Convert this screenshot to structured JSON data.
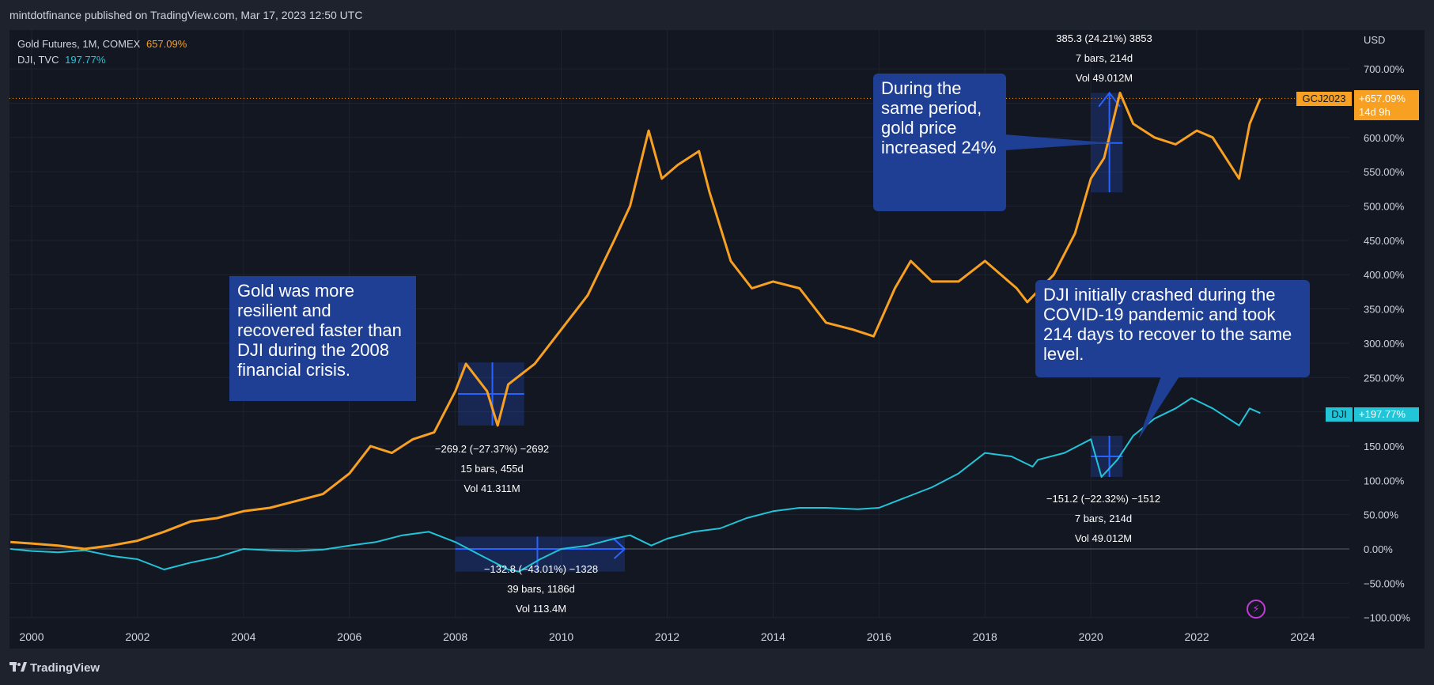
{
  "header": {
    "publisher": "mintdotfinance published on TradingView.com, Mar 17, 2023 12:50 UTC"
  },
  "footer": {
    "brand": "TradingView"
  },
  "legend": [
    {
      "name": "Gold Futures, 1M, COMEX",
      "value": "657.09%",
      "color": "#f7a021"
    },
    {
      "name": "DJI, TVC",
      "value": "197.77%",
      "color": "#22c4d8"
    }
  ],
  "price_axis": {
    "currency": "USD"
  },
  "badges": {
    "gold": {
      "symbol": "GCJ2023",
      "value": "+657.09%",
      "countdown": "14d 9h"
    },
    "dji": {
      "symbol": "DJI",
      "value": "+197.77%"
    }
  },
  "annotations": [
    {
      "id": "note-gold-2008",
      "text": "Gold was more resilient and recovered faster than DJI during the 2008 financial crisis."
    },
    {
      "id": "note-gold-2020",
      "text": "During the same period, gold price increased 24%"
    },
    {
      "id": "note-dji-covid",
      "text": "DJI initially crashed during the COVID-19 pandemic and took 214 days to recover to the same level."
    }
  ],
  "measurements": [
    {
      "id": "meas-gold-2008",
      "line1": "−269.2 (−27.37%) −2692",
      "line2": "15 bars, 455d",
      "line3": "Vol 41.311M"
    },
    {
      "id": "meas-dji-2008",
      "line1": "−132.8 (−43.01%) −1328",
      "line2": "39 bars, 1186d",
      "line3": "Vol 113.4M"
    },
    {
      "id": "meas-gold-2020",
      "line1": "385.3 (24.21%) 3853",
      "line2": "7 bars, 214d",
      "line3": "Vol 49.012M"
    },
    {
      "id": "meas-dji-2020",
      "line1": "−151.2 (−22.32%) −1512",
      "line2": "7 bars, 214d",
      "line3": "Vol 49.012M"
    }
  ],
  "chart_data": {
    "type": "line",
    "ylabel": "USD",
    "y_unit": "%",
    "ylim": [
      -100,
      750
    ],
    "yticks": [
      -100,
      -50,
      0,
      50,
      100,
      150,
      200,
      250,
      300,
      350,
      400,
      450,
      500,
      550,
      600,
      650,
      700
    ],
    "xlim": [
      1999.6,
      2025.2
    ],
    "xticks": [
      2000,
      2002,
      2004,
      2006,
      2008,
      2010,
      2012,
      2014,
      2016,
      2018,
      2020,
      2022,
      2024
    ],
    "grid": true,
    "series": [
      {
        "name": "Gold Futures, 1M, COMEX",
        "color": "#f7a021",
        "x": [
          1999.6,
          2000.0,
          2000.5,
          2001.0,
          2001.5,
          2002.0,
          2002.5,
          2003.0,
          2003.5,
          2004.0,
          2004.5,
          2005.0,
          2005.5,
          2006.0,
          2006.4,
          2006.8,
          2007.2,
          2007.6,
          2008.0,
          2008.2,
          2008.6,
          2008.8,
          2009.0,
          2009.5,
          2010.0,
          2010.5,
          2011.0,
          2011.3,
          2011.65,
          2011.9,
          2012.2,
          2012.6,
          2012.8,
          2013.2,
          2013.6,
          2014.0,
          2014.5,
          2015.0,
          2015.5,
          2015.9,
          2016.3,
          2016.6,
          2017.0,
          2017.5,
          2018.0,
          2018.6,
          2018.8,
          2019.3,
          2019.7,
          2020.0,
          2020.25,
          2020.55,
          2020.8,
          2021.2,
          2021.6,
          2022.0,
          2022.3,
          2022.8,
          2023.0,
          2023.2
        ],
        "y": [
          10,
          8,
          5,
          0,
          5,
          12,
          25,
          40,
          45,
          55,
          60,
          70,
          80,
          110,
          150,
          140,
          160,
          170,
          230,
          270,
          230,
          180,
          240,
          270,
          320,
          370,
          450,
          500,
          610,
          540,
          560,
          580,
          520,
          420,
          380,
          390,
          380,
          330,
          320,
          310,
          380,
          420,
          390,
          390,
          420,
          380,
          360,
          400,
          460,
          540,
          570,
          665,
          620,
          600,
          590,
          610,
          600,
          540,
          620,
          657
        ]
      },
      {
        "name": "DJI, TVC",
        "color": "#22c4d8",
        "x": [
          1999.6,
          2000.0,
          2000.5,
          2001.0,
          2001.5,
          2002.0,
          2002.5,
          2003.0,
          2003.5,
          2004.0,
          2004.5,
          2005.0,
          2005.5,
          2006.0,
          2006.5,
          2007.0,
          2007.5,
          2008.0,
          2008.5,
          2009.0,
          2009.2,
          2009.6,
          2010.0,
          2010.5,
          2011.0,
          2011.3,
          2011.7,
          2012.0,
          2012.5,
          2013.0,
          2013.5,
          2014.0,
          2014.5,
          2015.0,
          2015.6,
          2016.0,
          2016.5,
          2017.0,
          2017.5,
          2018.0,
          2018.5,
          2018.9,
          2019.0,
          2019.5,
          2020.0,
          2020.2,
          2020.5,
          2020.8,
          2021.2,
          2021.6,
          2021.9,
          2022.3,
          2022.8,
          2023.0,
          2023.2
        ],
        "y": [
          0,
          -3,
          -5,
          -2,
          -10,
          -15,
          -30,
          -20,
          -12,
          0,
          -2,
          -3,
          -1,
          5,
          10,
          20,
          25,
          10,
          -10,
          -30,
          -33,
          -15,
          0,
          5,
          15,
          20,
          5,
          15,
          25,
          30,
          45,
          55,
          60,
          60,
          58,
          60,
          75,
          90,
          110,
          140,
          135,
          120,
          130,
          140,
          160,
          105,
          130,
          165,
          190,
          205,
          220,
          205,
          180,
          205,
          198
        ]
      }
    ]
  }
}
